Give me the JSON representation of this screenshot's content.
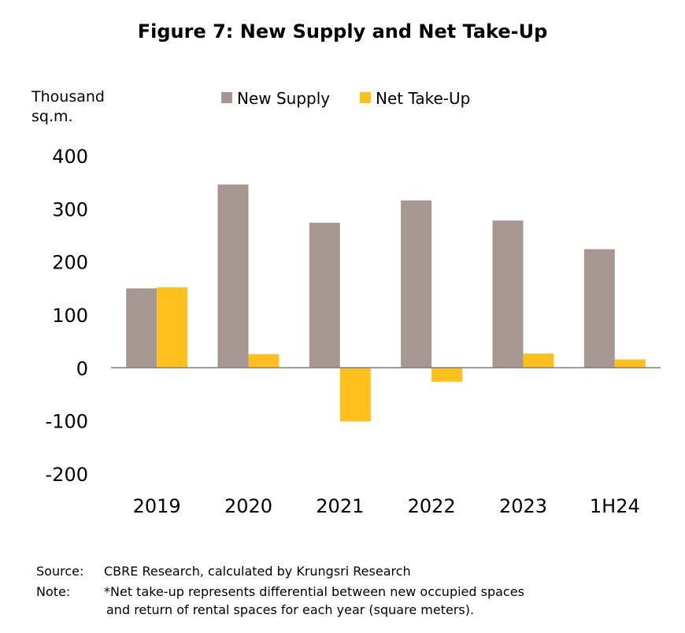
{
  "chart_data": {
    "type": "bar",
    "title": "Figure 7: New Supply  and Net Take-Up",
    "ylabel_lines": [
      "Thousand",
      "sq.m."
    ],
    "xlabel": "",
    "categories": [
      "2019",
      "2020",
      "2021",
      "2022",
      "2023",
      "1H24"
    ],
    "series": [
      {
        "name": "New Supply",
        "color": "#a79793",
        "values": [
          150,
          346,
          274,
          316,
          278,
          224
        ]
      },
      {
        "name": "Net Take-Up",
        "color": "#ffc01e",
        "values": [
          152,
          26,
          -101,
          -26,
          27,
          16
        ]
      }
    ],
    "ylim": [
      -200,
      400
    ],
    "yticks": [
      400,
      300,
      200,
      100,
      0,
      -100,
      -200
    ],
    "grid": false,
    "legend_position": "top"
  },
  "footer": {
    "source_key": "Source:",
    "source_text": "CBRE Research, calculated by Krungsri Research",
    "note_key": "Note:",
    "note_line1": "*Net take-up represents differential between new occupied spaces",
    "note_line2": "and return of rental spaces for each year (square meters)."
  }
}
